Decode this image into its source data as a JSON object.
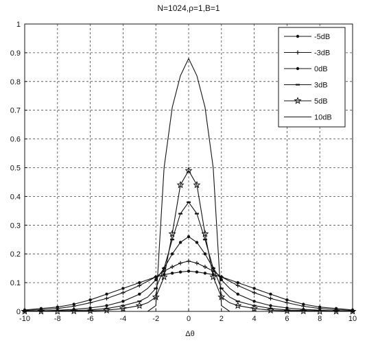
{
  "chart_data": {
    "type": "line",
    "title": "N=1024,ρ=1,B=1",
    "xlabel": "Δθ",
    "ylabel": "",
    "xlim": [
      -10,
      10
    ],
    "ylim": [
      0,
      1
    ],
    "x_ticks": [
      "-10",
      "-8",
      "-6",
      "-4",
      "-2",
      "0",
      "2",
      "4",
      "6",
      "8",
      "10"
    ],
    "y_ticks": [
      "0",
      "0.1",
      "0.2",
      "0.3",
      "0.4",
      "0.5",
      "0.6",
      "0.7",
      "0.8",
      "0.9",
      "1"
    ],
    "grid": true,
    "legend_position": "top-right",
    "x": [
      -10,
      -9,
      -8,
      -7,
      -6,
      -5,
      -4,
      -3,
      -2.5,
      -2,
      -1.5,
      -1,
      -0.5,
      0,
      0.5,
      1,
      1.5,
      2,
      2.5,
      3,
      4,
      5,
      6,
      7,
      8,
      9,
      10
    ],
    "series": [
      {
        "name": "-5dB",
        "marker": "dot",
        "values": [
          0.005,
          0.01,
          0.015,
          0.025,
          0.04,
          0.06,
          0.08,
          0.1,
          0.11,
          0.12,
          0.128,
          0.133,
          0.137,
          0.14,
          0.137,
          0.133,
          0.128,
          0.12,
          0.11,
          0.1,
          0.08,
          0.06,
          0.04,
          0.025,
          0.015,
          0.01,
          0.005
        ]
      },
      {
        "name": "-3dB",
        "marker": "plus",
        "values": [
          0.003,
          0.006,
          0.01,
          0.018,
          0.03,
          0.045,
          0.065,
          0.09,
          0.105,
          0.12,
          0.14,
          0.155,
          0.168,
          0.175,
          0.168,
          0.155,
          0.14,
          0.12,
          0.105,
          0.09,
          0.065,
          0.045,
          0.03,
          0.018,
          0.01,
          0.006,
          0.003
        ]
      },
      {
        "name": "0dB",
        "marker": "dot",
        "values": [
          0.001,
          0.002,
          0.004,
          0.007,
          0.012,
          0.02,
          0.035,
          0.06,
          0.08,
          0.11,
          0.15,
          0.2,
          0.24,
          0.26,
          0.24,
          0.2,
          0.15,
          0.11,
          0.08,
          0.06,
          0.035,
          0.02,
          0.012,
          0.007,
          0.004,
          0.002,
          0.001
        ]
      },
      {
        "name": "3dB",
        "marker": "dash",
        "values": [
          0,
          0.001,
          0.002,
          0.003,
          0.005,
          0.01,
          0.02,
          0.035,
          0.05,
          0.08,
          0.15,
          0.25,
          0.34,
          0.38,
          0.34,
          0.25,
          0.15,
          0.08,
          0.05,
          0.035,
          0.02,
          0.01,
          0.005,
          0.003,
          0.002,
          0.001,
          0
        ]
      },
      {
        "name": "5dB",
        "marker": "star",
        "values": [
          0,
          0,
          0,
          0.001,
          0.002,
          0.004,
          0.01,
          0.02,
          0.03,
          0.05,
          0.12,
          0.27,
          0.44,
          0.49,
          0.44,
          0.27,
          0.12,
          0.05,
          0.03,
          0.02,
          0.01,
          0.004,
          0.002,
          0.001,
          0,
          0,
          0
        ]
      },
      {
        "name": "10dB",
        "marker": "none",
        "values": [
          0,
          0,
          0,
          0,
          0,
          0,
          0,
          0,
          0,
          0.02,
          0.5,
          0.71,
          0.82,
          0.88,
          0.82,
          0.71,
          0.5,
          0.02,
          0,
          0,
          0,
          0,
          0,
          0,
          0,
          0,
          0
        ]
      }
    ]
  }
}
